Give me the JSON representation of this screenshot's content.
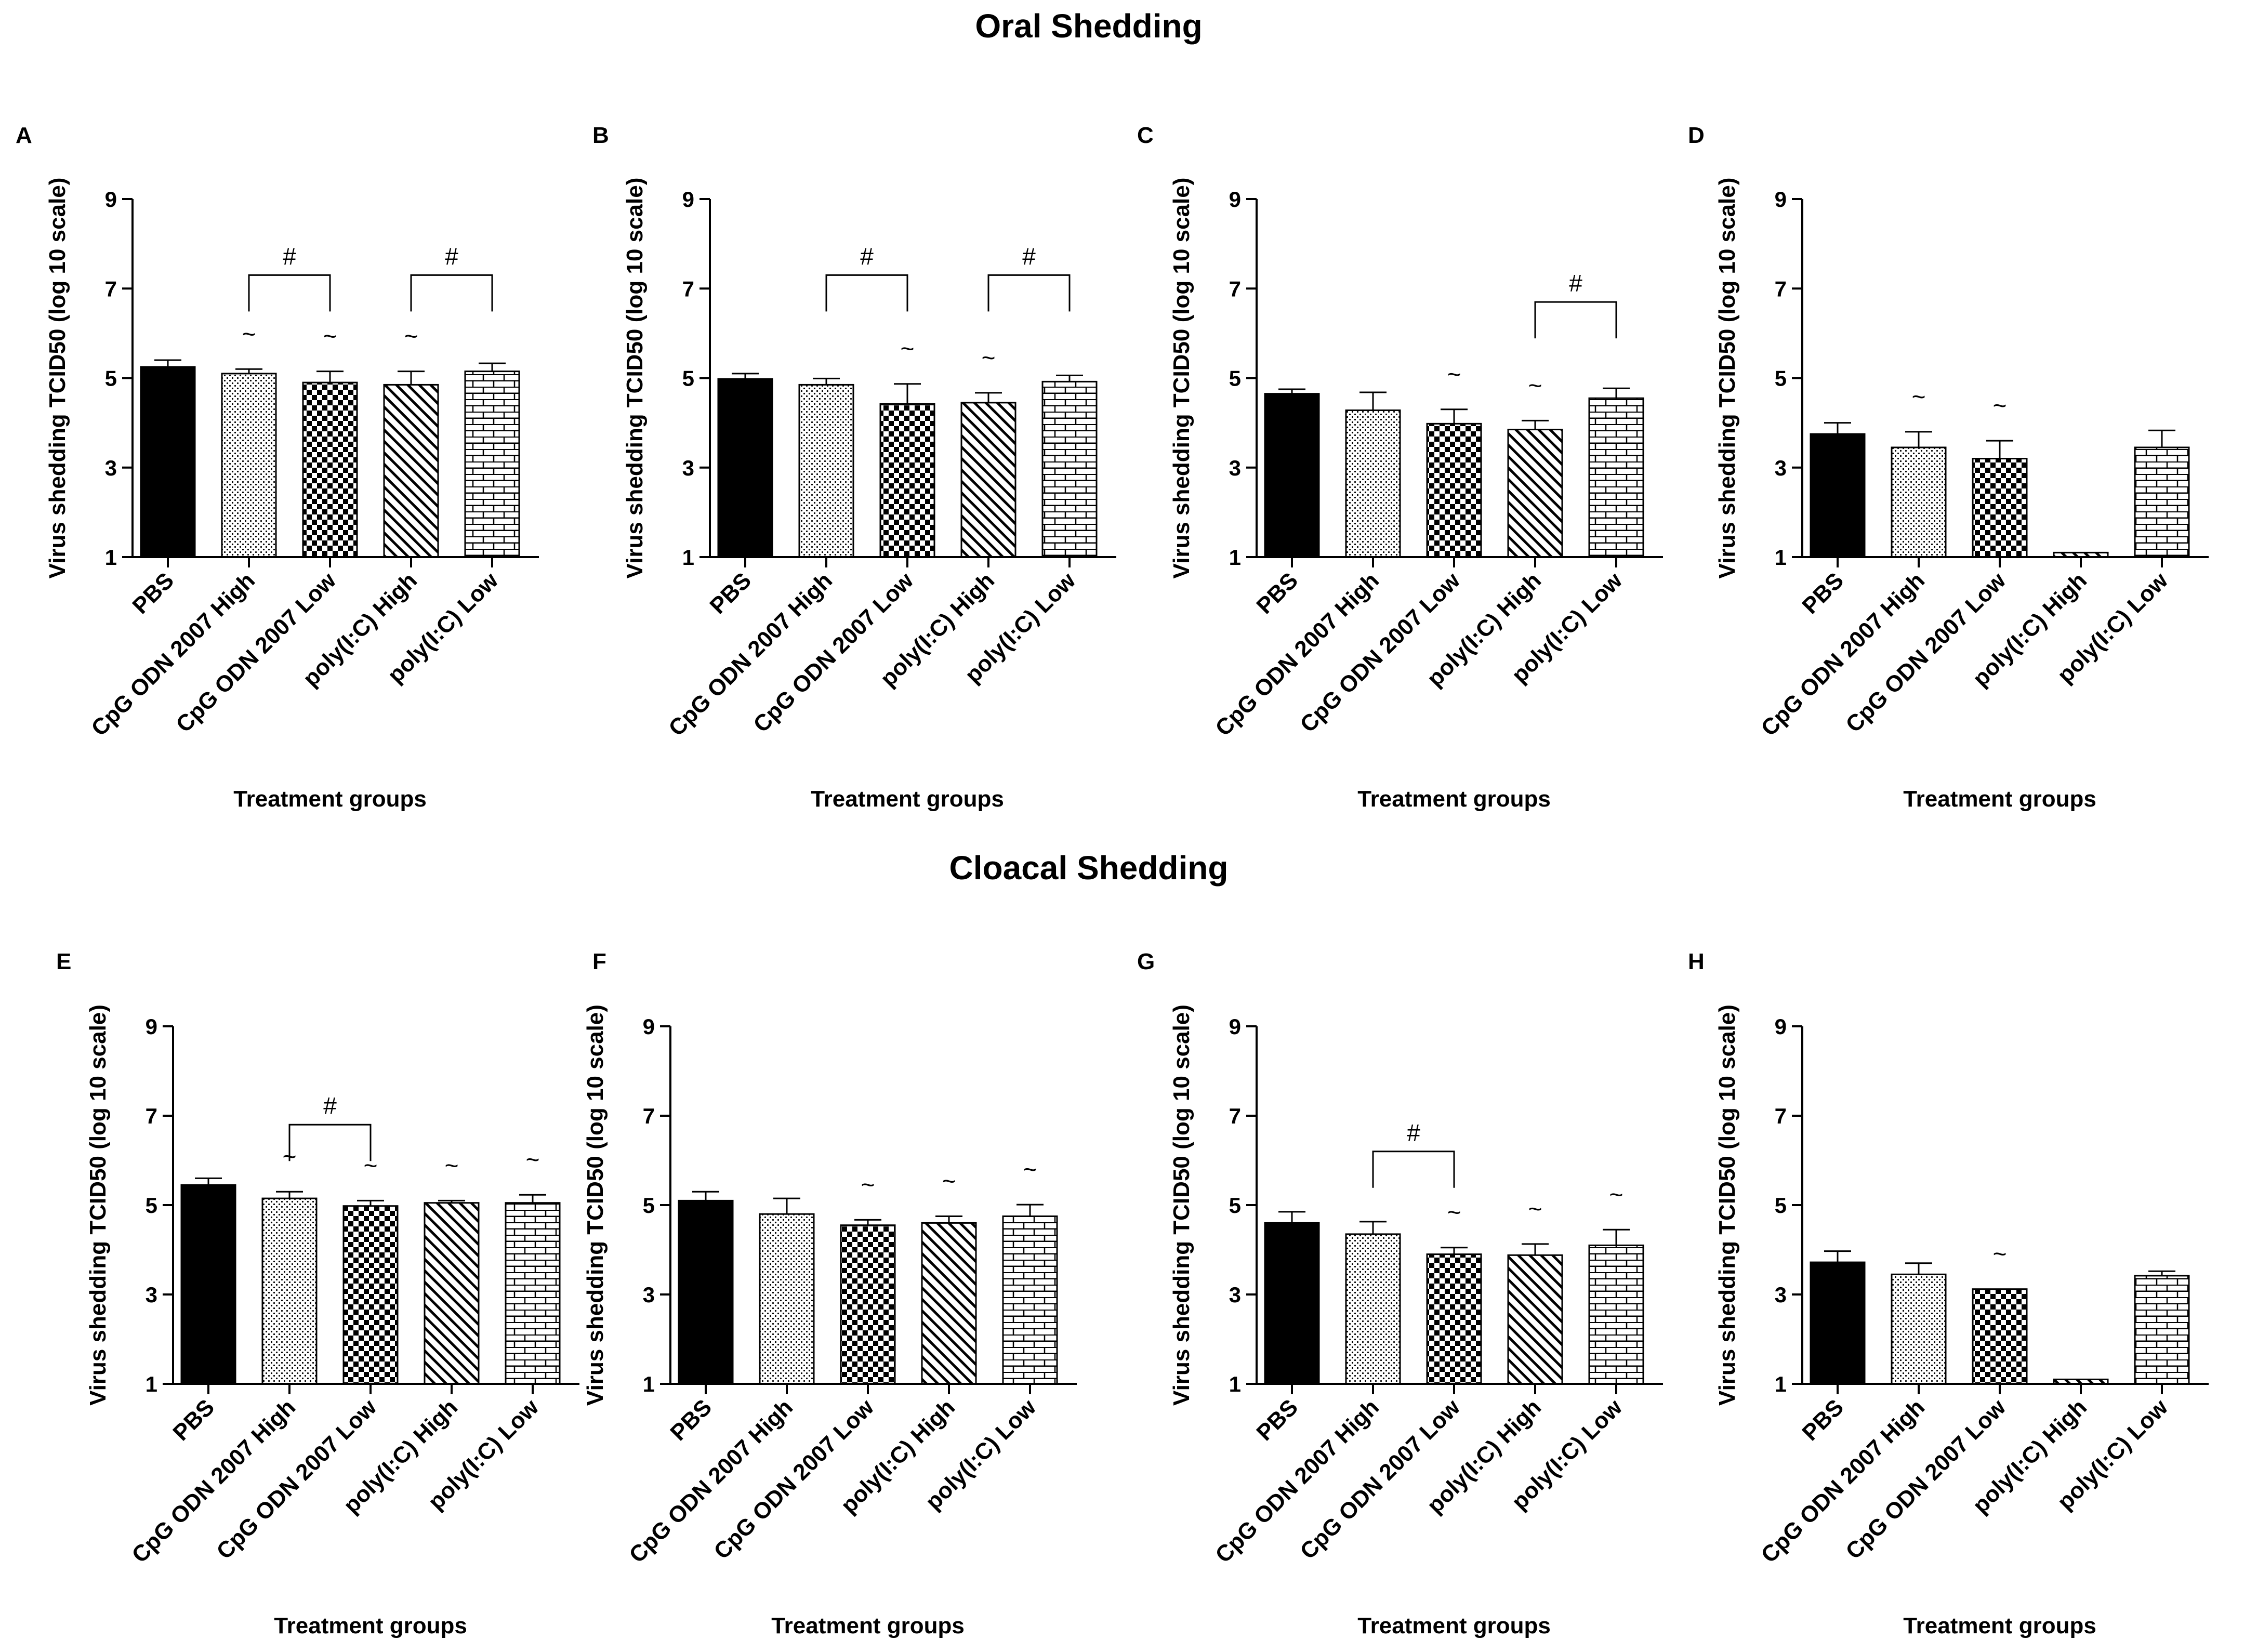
{
  "sections": [
    {
      "title": "Oral Shedding",
      "panels": [
        0,
        1,
        2,
        3
      ]
    },
    {
      "title": "Cloacal Shedding",
      "panels": [
        4,
        5,
        6,
        7
      ]
    }
  ],
  "categories": [
    "PBS",
    "CpG ODN 2007 High",
    "CpG ODN 2007 Low",
    "poly(I:C) High",
    "poly(I:C) Low"
  ],
  "patterns": [
    "solid-black",
    "dots",
    "checker",
    "diagonal-stripes",
    "brick"
  ],
  "colors": {
    "ink": "#000000",
    "background": "#ffffff"
  },
  "chart_data": [
    {
      "panel": "A",
      "type": "bar",
      "title": "",
      "xlabel": "Treatment groups",
      "ylabel": "Virus shedding TCID50 (log 10 scale)",
      "ylim": [
        1,
        9
      ],
      "yticks": [
        1,
        3,
        5,
        7,
        9
      ],
      "categories": [
        "PBS",
        "CpG ODN 2007 High",
        "CpG ODN 2007 Low",
        "poly(I:C) High",
        "poly(I:C) Low"
      ],
      "values": [
        5.25,
        5.1,
        4.9,
        4.85,
        5.15
      ],
      "errors": [
        0.15,
        0.1,
        0.25,
        0.3,
        0.18
      ],
      "tildes": [
        false,
        true,
        true,
        true,
        false
      ],
      "brackets": [
        {
          "from": 1,
          "to": 2,
          "y": 7.3,
          "label": "#"
        },
        {
          "from": 3,
          "to": 4,
          "y": 7.3,
          "label": "#"
        }
      ]
    },
    {
      "panel": "B",
      "type": "bar",
      "title": "",
      "xlabel": "Treatment groups",
      "ylabel": "Virus shedding TCID50 (log 10 scale)",
      "ylim": [
        1,
        9
      ],
      "yticks": [
        1,
        3,
        5,
        7,
        9
      ],
      "categories": [
        "PBS",
        "CpG ODN 2007 High",
        "CpG ODN 2007 Low",
        "poly(I:C) High",
        "poly(I:C) Low"
      ],
      "values": [
        4.98,
        4.85,
        4.42,
        4.45,
        4.92
      ],
      "errors": [
        0.12,
        0.14,
        0.45,
        0.22,
        0.14
      ],
      "tildes": [
        false,
        false,
        true,
        true,
        false
      ],
      "brackets": [
        {
          "from": 1,
          "to": 2,
          "y": 7.3,
          "label": "#"
        },
        {
          "from": 3,
          "to": 4,
          "y": 7.3,
          "label": "#"
        }
      ]
    },
    {
      "panel": "C",
      "type": "bar",
      "title": "",
      "xlabel": "Treatment groups",
      "ylabel": "Virus shedding TCID50 (log 10 scale)",
      "ylim": [
        1,
        9
      ],
      "yticks": [
        1,
        3,
        5,
        7,
        9
      ],
      "categories": [
        "PBS",
        "CpG ODN 2007 High",
        "CpG ODN 2007 Low",
        "poly(I:C) High",
        "poly(I:C) Low"
      ],
      "values": [
        4.65,
        4.28,
        3.98,
        3.85,
        4.55
      ],
      "errors": [
        0.1,
        0.4,
        0.32,
        0.2,
        0.22
      ],
      "tildes": [
        false,
        false,
        true,
        true,
        false
      ],
      "brackets": [
        {
          "from": 3,
          "to": 4,
          "y": 6.7,
          "label": "#"
        }
      ]
    },
    {
      "panel": "D",
      "type": "bar",
      "title": "",
      "xlabel": "Treatment groups",
      "ylabel": "Virus shedding TCID50 (log 10 scale)",
      "ylim": [
        1,
        9
      ],
      "yticks": [
        1,
        3,
        5,
        7,
        9
      ],
      "categories": [
        "PBS",
        "CpG ODN 2007 High",
        "CpG ODN 2007 Low",
        "poly(I:C) High",
        "poly(I:C) Low"
      ],
      "values": [
        3.75,
        3.45,
        3.2,
        1.1,
        3.45
      ],
      "errors": [
        0.25,
        0.35,
        0.4,
        0.0,
        0.38
      ],
      "tildes": [
        false,
        true,
        true,
        false,
        false
      ],
      "brackets": []
    },
    {
      "panel": "E",
      "type": "bar",
      "title": "",
      "xlabel": "Treatment groups",
      "ylabel": "Virus shedding TCID50 (log 10 scale)",
      "ylim": [
        1,
        9
      ],
      "yticks": [
        1,
        3,
        5,
        7,
        9
      ],
      "categories": [
        "PBS",
        "CpG ODN 2007 High",
        "CpG ODN 2007 Low",
        "poly(I:C) High",
        "poly(I:C) Low"
      ],
      "values": [
        5.45,
        5.15,
        4.98,
        5.05,
        5.05
      ],
      "errors": [
        0.15,
        0.15,
        0.12,
        0.05,
        0.18
      ],
      "tildes": [
        false,
        true,
        true,
        true,
        true
      ],
      "brackets": [
        {
          "from": 1,
          "to": 2,
          "y": 6.8,
          "label": "#"
        }
      ]
    },
    {
      "panel": "F",
      "type": "bar",
      "title": "",
      "xlabel": "Treatment groups",
      "ylabel": "Virus shedding TCID50 (log 10 scale)",
      "ylim": [
        1,
        9
      ],
      "yticks": [
        1,
        3,
        5,
        7,
        9
      ],
      "categories": [
        "PBS",
        "CpG ODN 2007 High",
        "CpG ODN 2007 Low",
        "poly(I:C) High",
        "poly(I:C) Low"
      ],
      "values": [
        5.1,
        4.8,
        4.55,
        4.6,
        4.75
      ],
      "errors": [
        0.2,
        0.35,
        0.12,
        0.15,
        0.26
      ],
      "tildes": [
        false,
        false,
        true,
        true,
        true
      ],
      "brackets": []
    },
    {
      "panel": "G",
      "type": "bar",
      "title": "",
      "xlabel": "Treatment groups",
      "ylabel": "Virus shedding TCID50 (log 10 scale)",
      "ylim": [
        1,
        9
      ],
      "yticks": [
        1,
        3,
        5,
        7,
        9
      ],
      "categories": [
        "PBS",
        "CpG ODN 2007 High",
        "CpG ODN 2007 Low",
        "poly(I:C) High",
        "poly(I:C) Low"
      ],
      "values": [
        4.6,
        4.35,
        3.9,
        3.88,
        4.1
      ],
      "errors": [
        0.25,
        0.28,
        0.15,
        0.25,
        0.35
      ],
      "tildes": [
        false,
        false,
        true,
        true,
        true
      ],
      "brackets": [
        {
          "from": 1,
          "to": 2,
          "y": 6.2,
          "label": "#"
        }
      ]
    },
    {
      "panel": "H",
      "type": "bar",
      "title": "",
      "xlabel": "Treatment groups",
      "ylabel": "Virus shedding TCID50 (log 10 scale)",
      "ylim": [
        1,
        9
      ],
      "yticks": [
        1,
        3,
        5,
        7,
        9
      ],
      "categories": [
        "PBS",
        "CpG ODN 2007 High",
        "CpG ODN 2007 Low",
        "poly(I:C) High",
        "poly(I:C) Low"
      ],
      "values": [
        3.72,
        3.45,
        3.12,
        1.1,
        3.42
      ],
      "errors": [
        0.25,
        0.25,
        0.0,
        0.0,
        0.1
      ],
      "tildes": [
        false,
        false,
        true,
        false,
        false
      ],
      "brackets": []
    }
  ]
}
